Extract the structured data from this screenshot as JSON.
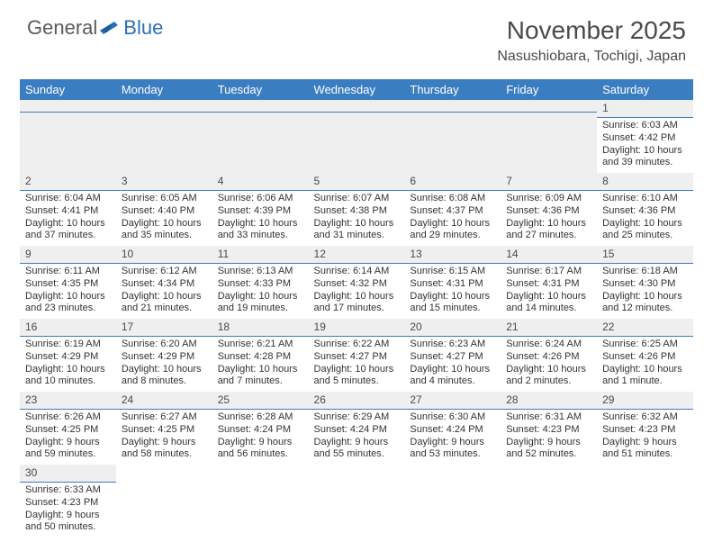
{
  "logo": {
    "text1": "General",
    "text2": "Blue"
  },
  "title": "November 2025",
  "location": "Nasushiobara, Tochigi, Japan",
  "weekdays": [
    "Sunday",
    "Monday",
    "Tuesday",
    "Wednesday",
    "Thursday",
    "Friday",
    "Saturday"
  ],
  "colors": {
    "headerBar": "#3a7ec1",
    "daynumBg": "#efefef",
    "text": "#333333",
    "brandBlue": "#2d6fb5",
    "brandGrey": "#5a5a5a"
  },
  "days": [
    {
      "n": "1",
      "sunrise": "Sunrise: 6:03 AM",
      "sunset": "Sunset: 4:42 PM",
      "daylight": "Daylight: 10 hours and 39 minutes."
    },
    {
      "n": "2",
      "sunrise": "Sunrise: 6:04 AM",
      "sunset": "Sunset: 4:41 PM",
      "daylight": "Daylight: 10 hours and 37 minutes."
    },
    {
      "n": "3",
      "sunrise": "Sunrise: 6:05 AM",
      "sunset": "Sunset: 4:40 PM",
      "daylight": "Daylight: 10 hours and 35 minutes."
    },
    {
      "n": "4",
      "sunrise": "Sunrise: 6:06 AM",
      "sunset": "Sunset: 4:39 PM",
      "daylight": "Daylight: 10 hours and 33 minutes."
    },
    {
      "n": "5",
      "sunrise": "Sunrise: 6:07 AM",
      "sunset": "Sunset: 4:38 PM",
      "daylight": "Daylight: 10 hours and 31 minutes."
    },
    {
      "n": "6",
      "sunrise": "Sunrise: 6:08 AM",
      "sunset": "Sunset: 4:37 PM",
      "daylight": "Daylight: 10 hours and 29 minutes."
    },
    {
      "n": "7",
      "sunrise": "Sunrise: 6:09 AM",
      "sunset": "Sunset: 4:36 PM",
      "daylight": "Daylight: 10 hours and 27 minutes."
    },
    {
      "n": "8",
      "sunrise": "Sunrise: 6:10 AM",
      "sunset": "Sunset: 4:36 PM",
      "daylight": "Daylight: 10 hours and 25 minutes."
    },
    {
      "n": "9",
      "sunrise": "Sunrise: 6:11 AM",
      "sunset": "Sunset: 4:35 PM",
      "daylight": "Daylight: 10 hours and 23 minutes."
    },
    {
      "n": "10",
      "sunrise": "Sunrise: 6:12 AM",
      "sunset": "Sunset: 4:34 PM",
      "daylight": "Daylight: 10 hours and 21 minutes."
    },
    {
      "n": "11",
      "sunrise": "Sunrise: 6:13 AM",
      "sunset": "Sunset: 4:33 PM",
      "daylight": "Daylight: 10 hours and 19 minutes."
    },
    {
      "n": "12",
      "sunrise": "Sunrise: 6:14 AM",
      "sunset": "Sunset: 4:32 PM",
      "daylight": "Daylight: 10 hours and 17 minutes."
    },
    {
      "n": "13",
      "sunrise": "Sunrise: 6:15 AM",
      "sunset": "Sunset: 4:31 PM",
      "daylight": "Daylight: 10 hours and 15 minutes."
    },
    {
      "n": "14",
      "sunrise": "Sunrise: 6:17 AM",
      "sunset": "Sunset: 4:31 PM",
      "daylight": "Daylight: 10 hours and 14 minutes."
    },
    {
      "n": "15",
      "sunrise": "Sunrise: 6:18 AM",
      "sunset": "Sunset: 4:30 PM",
      "daylight": "Daylight: 10 hours and 12 minutes."
    },
    {
      "n": "16",
      "sunrise": "Sunrise: 6:19 AM",
      "sunset": "Sunset: 4:29 PM",
      "daylight": "Daylight: 10 hours and 10 minutes."
    },
    {
      "n": "17",
      "sunrise": "Sunrise: 6:20 AM",
      "sunset": "Sunset: 4:29 PM",
      "daylight": "Daylight: 10 hours and 8 minutes."
    },
    {
      "n": "18",
      "sunrise": "Sunrise: 6:21 AM",
      "sunset": "Sunset: 4:28 PM",
      "daylight": "Daylight: 10 hours and 7 minutes."
    },
    {
      "n": "19",
      "sunrise": "Sunrise: 6:22 AM",
      "sunset": "Sunset: 4:27 PM",
      "daylight": "Daylight: 10 hours and 5 minutes."
    },
    {
      "n": "20",
      "sunrise": "Sunrise: 6:23 AM",
      "sunset": "Sunset: 4:27 PM",
      "daylight": "Daylight: 10 hours and 4 minutes."
    },
    {
      "n": "21",
      "sunrise": "Sunrise: 6:24 AM",
      "sunset": "Sunset: 4:26 PM",
      "daylight": "Daylight: 10 hours and 2 minutes."
    },
    {
      "n": "22",
      "sunrise": "Sunrise: 6:25 AM",
      "sunset": "Sunset: 4:26 PM",
      "daylight": "Daylight: 10 hours and 1 minute."
    },
    {
      "n": "23",
      "sunrise": "Sunrise: 6:26 AM",
      "sunset": "Sunset: 4:25 PM",
      "daylight": "Daylight: 9 hours and 59 minutes."
    },
    {
      "n": "24",
      "sunrise": "Sunrise: 6:27 AM",
      "sunset": "Sunset: 4:25 PM",
      "daylight": "Daylight: 9 hours and 58 minutes."
    },
    {
      "n": "25",
      "sunrise": "Sunrise: 6:28 AM",
      "sunset": "Sunset: 4:24 PM",
      "daylight": "Daylight: 9 hours and 56 minutes."
    },
    {
      "n": "26",
      "sunrise": "Sunrise: 6:29 AM",
      "sunset": "Sunset: 4:24 PM",
      "daylight": "Daylight: 9 hours and 55 minutes."
    },
    {
      "n": "27",
      "sunrise": "Sunrise: 6:30 AM",
      "sunset": "Sunset: 4:24 PM",
      "daylight": "Daylight: 9 hours and 53 minutes."
    },
    {
      "n": "28",
      "sunrise": "Sunrise: 6:31 AM",
      "sunset": "Sunset: 4:23 PM",
      "daylight": "Daylight: 9 hours and 52 minutes."
    },
    {
      "n": "29",
      "sunrise": "Sunrise: 6:32 AM",
      "sunset": "Sunset: 4:23 PM",
      "daylight": "Daylight: 9 hours and 51 minutes."
    },
    {
      "n": "30",
      "sunrise": "Sunrise: 6:33 AM",
      "sunset": "Sunset: 4:23 PM",
      "daylight": "Daylight: 9 hours and 50 minutes."
    }
  ],
  "layout": {
    "startWeekday": 6,
    "rows": 6,
    "cols": 7
  }
}
